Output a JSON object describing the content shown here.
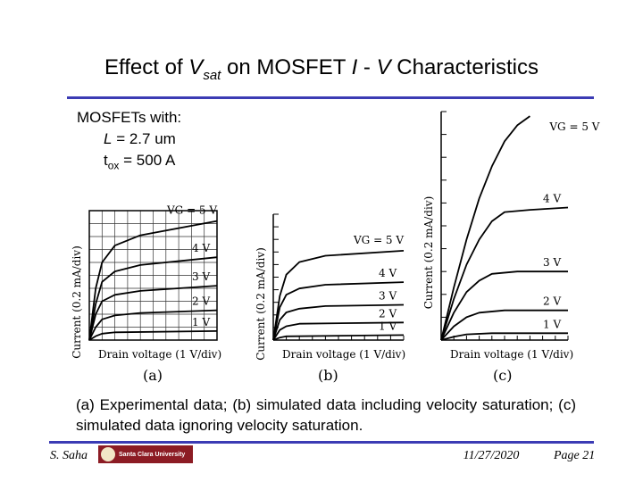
{
  "title": {
    "prefix": "Effect of ",
    "v": "V",
    "sub": "sat",
    "mid": " on MOSFET ",
    "i": "I",
    "dash": " - ",
    "v2": "V",
    "suffix": " Characteristics"
  },
  "device": {
    "heading": "MOSFETs with:",
    "l_label": "L",
    "l_value": " = 2.7 um",
    "tox_label": "t",
    "tox_sub": "ox",
    "tox_value": " = 500 A"
  },
  "caption": "(a) Experimental data; (b) simulated data including velocity saturation; (c) simulated data ignoring velocity saturation.",
  "footer": {
    "author": "S. Saha",
    "logo_text": "Santa Clara University",
    "date": "11/27/2020",
    "page": "Page 21"
  },
  "chart_data": [
    {
      "type": "line",
      "panel": "(a)",
      "xlabel": "Drain voltage (1 V/div)",
      "ylabel": "Current (0.2 mA/div)",
      "xlim": [
        0,
        10
      ],
      "ylim": [
        0,
        10
      ],
      "grid": true,
      "series": [
        {
          "name": "VG = 5 V",
          "values": [
            [
              0,
              0
            ],
            [
              0.5,
              4
            ],
            [
              1,
              6
            ],
            [
              2,
              7.3
            ],
            [
              4,
              8.1
            ],
            [
              10,
              9.2
            ]
          ]
        },
        {
          "name": "4 V",
          "values": [
            [
              0,
              0
            ],
            [
              0.5,
              2.8
            ],
            [
              1,
              4.5
            ],
            [
              2,
              5.3
            ],
            [
              4,
              5.8
            ],
            [
              10,
              6.4
            ]
          ]
        },
        {
          "name": "3 V",
          "values": [
            [
              0,
              0
            ],
            [
              0.5,
              2
            ],
            [
              1,
              3
            ],
            [
              2,
              3.5
            ],
            [
              4,
              3.8
            ],
            [
              10,
              4.2
            ]
          ]
        },
        {
          "name": "2 V",
          "values": [
            [
              0,
              0
            ],
            [
              0.5,
              1
            ],
            [
              1,
              1.6
            ],
            [
              2,
              1.9
            ],
            [
              4,
              2.1
            ],
            [
              10,
              2.3
            ]
          ]
        },
        {
          "name": "1 V",
          "values": [
            [
              0,
              0
            ],
            [
              0.5,
              0.3
            ],
            [
              1,
              0.5
            ],
            [
              2,
              0.6
            ],
            [
              10,
              0.7
            ]
          ]
        }
      ]
    },
    {
      "type": "line",
      "panel": "(b)",
      "xlabel": "Drain voltage (1 V/div)",
      "ylabel": "Current (0.2 mA/div)",
      "xlim": [
        0,
        10
      ],
      "ylim": [
        0,
        10
      ],
      "grid": false,
      "series": [
        {
          "name": "VG = 5 V",
          "values": [
            [
              0,
              0
            ],
            [
              0.5,
              3.5
            ],
            [
              1,
              5.2
            ],
            [
              2,
              6.2
            ],
            [
              4,
              6.7
            ],
            [
              10,
              7.1
            ]
          ]
        },
        {
          "name": "4 V",
          "values": [
            [
              0,
              0
            ],
            [
              0.5,
              2.6
            ],
            [
              1,
              3.6
            ],
            [
              2,
              4.1
            ],
            [
              4,
              4.4
            ],
            [
              10,
              4.6
            ]
          ]
        },
        {
          "name": "3 V",
          "values": [
            [
              0,
              0
            ],
            [
              0.5,
              1.6
            ],
            [
              1,
              2.2
            ],
            [
              2,
              2.5
            ],
            [
              4,
              2.7
            ],
            [
              10,
              2.8
            ]
          ]
        },
        {
          "name": "2 V",
          "values": [
            [
              0,
              0
            ],
            [
              0.5,
              0.8
            ],
            [
              1,
              1.1
            ],
            [
              2,
              1.3
            ],
            [
              10,
              1.4
            ]
          ]
        },
        {
          "name": "1 V",
          "values": [
            [
              0,
              0
            ],
            [
              0.5,
              0.2
            ],
            [
              1,
              0.3
            ],
            [
              10,
              0.4
            ]
          ]
        }
      ]
    },
    {
      "type": "line",
      "panel": "(c)",
      "xlabel": "Drain voltage (1 V/div)",
      "ylabel": "Current (0.2 mA/div)",
      "xlim": [
        0,
        10
      ],
      "ylim": [
        0,
        10
      ],
      "grid": false,
      "series": [
        {
          "name": "VG = 5 V",
          "values": [
            [
              0,
              0
            ],
            [
              1,
              2.3
            ],
            [
              2,
              4.4
            ],
            [
              3,
              6.2
            ],
            [
              4,
              7.6
            ],
            [
              5,
              8.7
            ],
            [
              6,
              9.4
            ],
            [
              7,
              9.8
            ]
          ]
        },
        {
          "name": "4 V",
          "values": [
            [
              0,
              0
            ],
            [
              1,
              1.8
            ],
            [
              2,
              3.3
            ],
            [
              3,
              4.4
            ],
            [
              4,
              5.2
            ],
            [
              5,
              5.6
            ],
            [
              7,
              5.7
            ],
            [
              10,
              5.8
            ]
          ]
        },
        {
          "name": "3 V",
          "values": [
            [
              0,
              0
            ],
            [
              1,
              1.2
            ],
            [
              2,
              2.1
            ],
            [
              3,
              2.6
            ],
            [
              4,
              2.9
            ],
            [
              6,
              3.0
            ],
            [
              10,
              3.0
            ]
          ]
        },
        {
          "name": "2 V",
          "values": [
            [
              0,
              0
            ],
            [
              1,
              0.6
            ],
            [
              2,
              1.0
            ],
            [
              3,
              1.2
            ],
            [
              5,
              1.3
            ],
            [
              10,
              1.3
            ]
          ]
        },
        {
          "name": "1 V",
          "values": [
            [
              0,
              0
            ],
            [
              1,
              0.15
            ],
            [
              2,
              0.25
            ],
            [
              4,
              0.3
            ],
            [
              10,
              0.3
            ]
          ]
        }
      ]
    }
  ]
}
